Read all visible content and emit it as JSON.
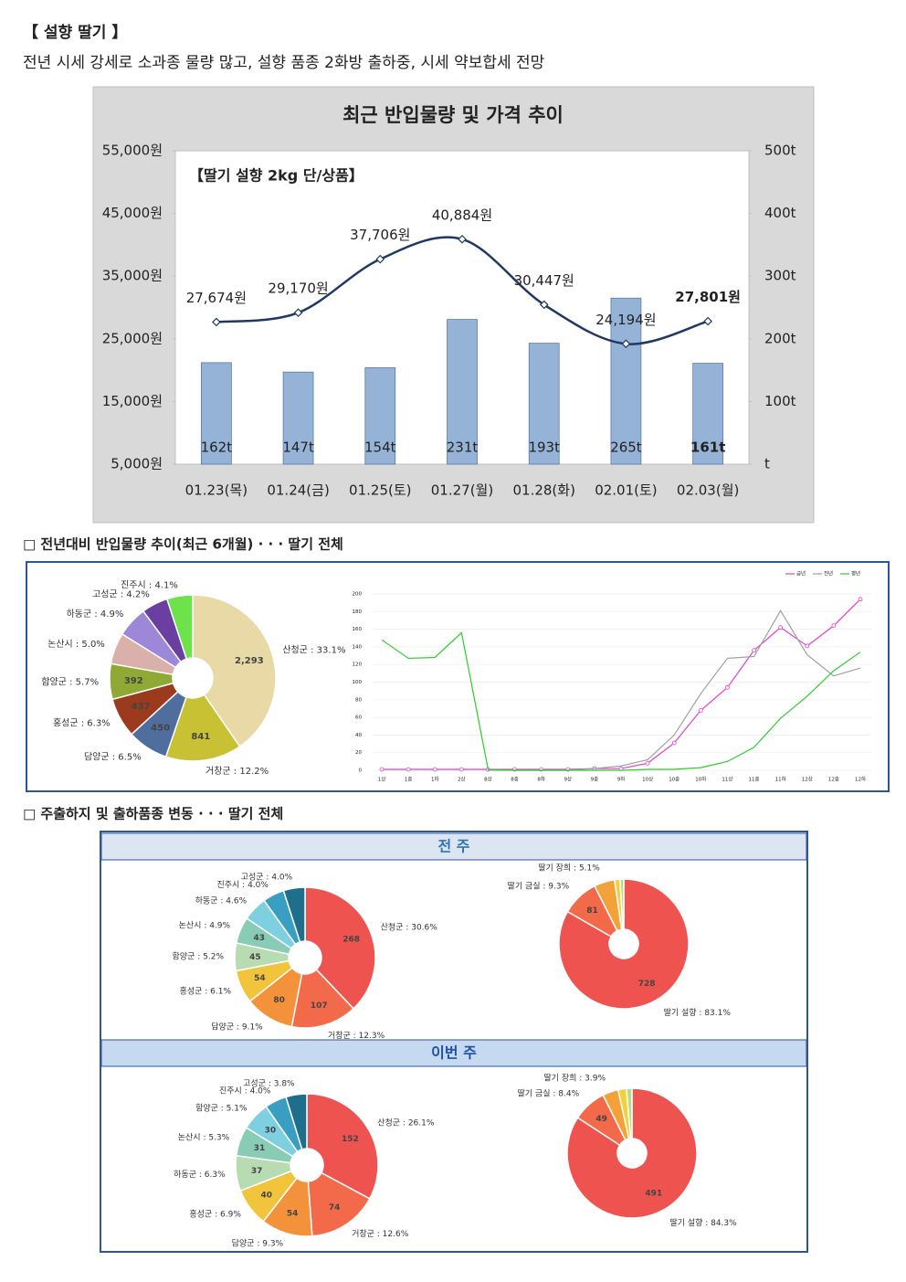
{
  "header": {
    "title": "【 설향 딸기 】",
    "summary": "전년 시세 강세로 소과종 물량 많고, 설향 품종 2화방 출하중, 시세 약보합세 전망"
  },
  "sections": [
    "□ 전년대비 반입물량 추이(최근 6개월) · · · 딸기 전체",
    "□ 주출하지 및 출하품종 변동 · · · 딸기 전체"
  ],
  "panels": [
    "전 주",
    "이번 주"
  ],
  "chart_data": [
    {
      "type": "combo",
      "title": "최근 반입물량 및 가격 추이",
      "annotation": "【딸기 설향 2kg 단/상품】",
      "categories": [
        "01.23(목)",
        "01.24(금)",
        "01.25(토)",
        "01.27(월)",
        "01.28(화)",
        "02.01(토)",
        "02.03(월)"
      ],
      "series": [
        {
          "type": "bar",
          "axis": "y2",
          "color": "#95b3d7",
          "values": [
            162,
            147,
            154,
            231,
            193,
            265,
            161
          ],
          "value_labels": [
            "162t",
            "147t",
            "154t",
            "231t",
            "193t",
            "265t",
            "161t"
          ]
        },
        {
          "type": "line",
          "color": "#1f3864",
          "values": [
            27674,
            29170,
            37706,
            40884,
            30447,
            24194,
            27801
          ],
          "value_labels": [
            "27,674원",
            "29,170원",
            "37,706원",
            "40,884원",
            "30,447원",
            "24,194원",
            "27,801원"
          ]
        }
      ],
      "ylim": [
        5000,
        55000
      ],
      "yticks": [
        {
          "value": 5000,
          "label": "5,000원"
        },
        {
          "value": 15000,
          "label": "15,000원"
        },
        {
          "value": 25000,
          "label": "25,000원"
        },
        {
          "value": 35000,
          "label": "35,000원"
        },
        {
          "value": 45000,
          "label": "45,000원"
        },
        {
          "value": 55000,
          "label": "55,000원"
        }
      ],
      "y2lim": [
        0,
        500
      ],
      "y2ticks": [
        {
          "value": 0,
          "label": "t"
        },
        {
          "value": 100,
          "label": "100t"
        },
        {
          "value": 200,
          "label": "200t"
        },
        {
          "value": 300,
          "label": "300t"
        },
        {
          "value": 400,
          "label": "400t"
        },
        {
          "value": 500,
          "label": "500t"
        }
      ]
    },
    {
      "type": "pie",
      "categories": [
        "산청군 : 33.1%",
        "거창군 : 12.2%",
        "담양군 : 6.5%",
        "홍성군 : 6.3%",
        "함양군 : 5.7%",
        "논산시 : 5.0%",
        "하동군 : 4.9%",
        "고성군 : 4.2%",
        "진주시 : 4.1%"
      ],
      "values": [
        2293,
        841,
        450,
        437,
        392,
        346,
        340,
        291,
        284
      ],
      "value_labels": [
        "2,293",
        "841",
        "450",
        "437",
        "392",
        null,
        null,
        null,
        null
      ],
      "colors": [
        "#e8d9a6",
        "#c8c134",
        "#4f6e9e",
        "#9c3a1e",
        "#8fa934",
        "#d9b0aa",
        "#9c87d8",
        "#6b3fa2",
        "#6ee24a"
      ]
    },
    {
      "type": "line",
      "legend": "top-right",
      "categories": [
        "1상",
        "1중",
        "1하",
        "2상",
        "8상",
        "8중",
        "8하",
        "9상",
        "9중",
        "9하",
        "10상",
        "10중",
        "10하",
        "11상",
        "11중",
        "11하",
        "12상",
        "12중",
        "12하"
      ],
      "series": [
        {
          "name": "금년",
          "color": "#e040d0",
          "marker": "circle",
          "values": [
            1,
            1,
            1,
            1,
            1,
            1,
            1,
            1,
            2,
            2,
            8,
            31,
            68,
            94,
            136,
            162,
            141,
            164,
            194
          ]
        },
        {
          "name": "전년",
          "color": "#a0a0a0",
          "values": [
            null,
            null,
            null,
            null,
            0,
            0,
            0,
            0,
            2,
            5,
            12,
            40,
            87,
            127,
            129,
            181,
            131,
            107,
            116
          ]
        },
        {
          "name": "평년",
          "color": "#2ecc2e",
          "values": [
            148,
            127,
            128,
            156,
            1,
            0,
            0,
            0,
            0,
            0,
            1,
            1,
            3,
            10,
            26,
            59,
            84,
            113,
            134
          ]
        }
      ],
      "ylim": [
        0,
        200
      ],
      "yticks": [
        0,
        20,
        40,
        60,
        80,
        100,
        120,
        140,
        160,
        180,
        200
      ]
    },
    {
      "type": "pie",
      "categories": [
        "산청군 : 30.6%",
        "거창군 : 12.3%",
        "담양군 : 9.1%",
        "홍성군 : 6.1%",
        "함양군 : 5.2%",
        "논산시 : 4.9%",
        "하동군 : 4.6%",
        "진주시 : 4.0%",
        "고성군 : 4.0%"
      ],
      "values": [
        268,
        107,
        80,
        54,
        45,
        43,
        40,
        35,
        35
      ],
      "value_labels": [
        "268",
        "107",
        "80",
        "54",
        "45",
        "43",
        null,
        null,
        null
      ],
      "colors": [
        "#ef5350",
        "#f36a4a",
        "#f3923a",
        "#f2c43c",
        "#b8dcb2",
        "#88ccb6",
        "#7ecfe0",
        "#3a9ec2",
        "#1e6f8c"
      ]
    },
    {
      "type": "pie",
      "categories": [
        "딸기 설향 : 83.1%",
        "딸기 금실 : 9.3%",
        "딸기 장희 : 5.1%",
        null,
        null
      ],
      "values": [
        728,
        81,
        45,
        12,
        8
      ],
      "value_labels": [
        "728",
        "81",
        null,
        null,
        null
      ],
      "colors": [
        "#ef5350",
        "#f36a4a",
        "#f3a23a",
        "#f2d13c",
        "#b8dc86"
      ]
    },
    {
      "type": "pie",
      "categories": [
        "산청군 : 26.1%",
        "거창군 : 12.6%",
        "담양군 : 9.3%",
        "홍성군 : 6.9%",
        "하동군 : 6.3%",
        "논산시 : 5.3%",
        "함양군 : 5.1%",
        "진주시 : 4.0%",
        "고성군 : 3.8%"
      ],
      "values": [
        152,
        74,
        54,
        40,
        37,
        31,
        30,
        23,
        22
      ],
      "value_labels": [
        "152",
        "74",
        "54",
        "40",
        "37",
        "31",
        "30",
        null,
        null
      ],
      "colors": [
        "#ef5350",
        "#f36a4a",
        "#f3923a",
        "#f2c43c",
        "#b8dcb2",
        "#88ccb6",
        "#7ecfe0",
        "#3a9ec2",
        "#1e6f8c"
      ]
    },
    {
      "type": "pie",
      "categories": [
        "딸기 설향 : 84.3%",
        "딸기 금실 : 8.4%",
        "딸기 장희 : 3.9%",
        null,
        null
      ],
      "values": [
        491,
        49,
        23,
        12,
        8
      ],
      "value_labels": [
        "491",
        "49",
        null,
        null,
        null
      ],
      "colors": [
        "#ef5350",
        "#f36a4a",
        "#f3a23a",
        "#f2d13c",
        "#b8dc86"
      ]
    }
  ]
}
